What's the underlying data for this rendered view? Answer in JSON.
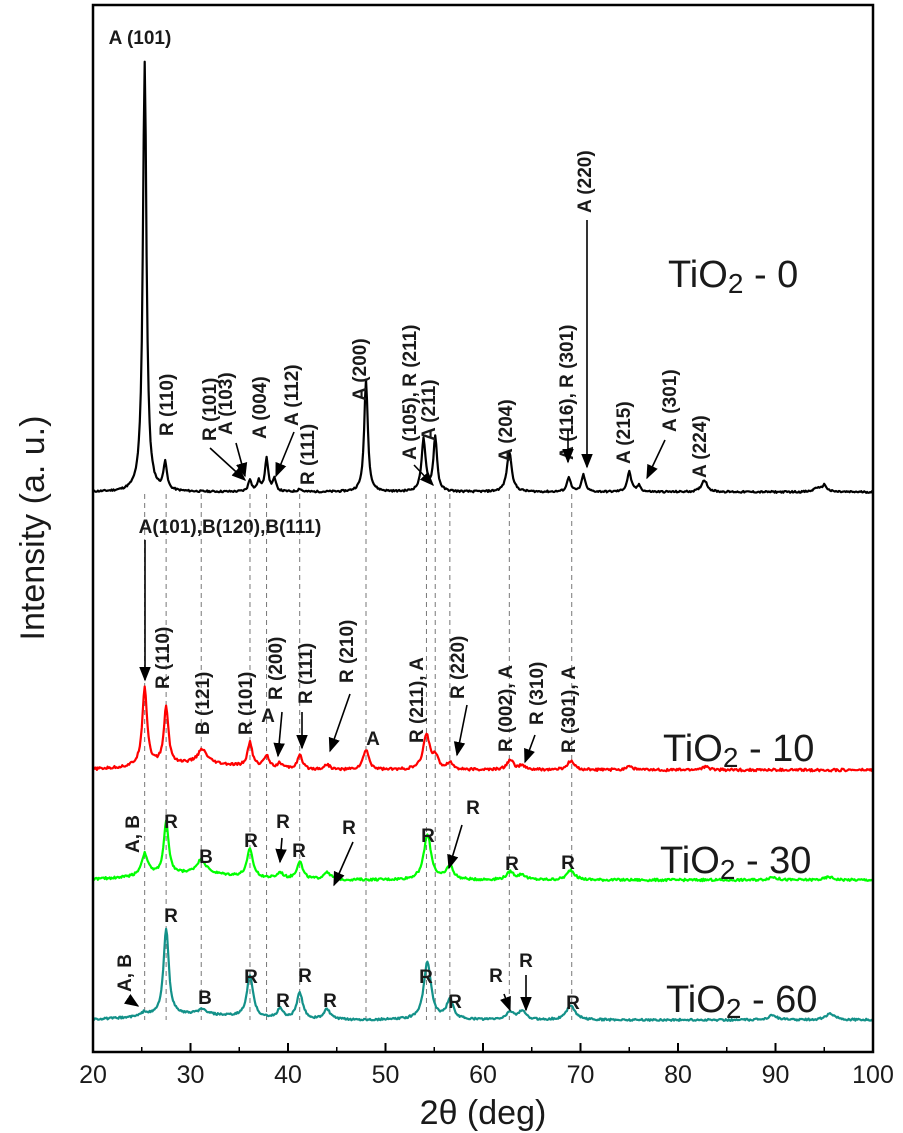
{
  "chart_data": {
    "type": "line",
    "xlabel": "2θ (deg)",
    "ylabel": "Intensity (a. u.)",
    "xlim": [
      20,
      100
    ],
    "x_ticks": [
      "20",
      "30",
      "40",
      "50",
      "60",
      "70",
      "80",
      "90",
      "100"
    ],
    "grid": false,
    "ref_lines_deg": [
      25.3,
      27.5,
      31.1,
      36.1,
      37.8,
      41.2,
      48.0,
      54.2,
      55.1,
      56.6,
      62.7,
      69.1
    ],
    "series": [
      {
        "name": "TiO2 - 0",
        "name_main": "TiO",
        "name_sub": "2",
        "name_rest": " - 0",
        "color": "#000000",
        "baseline": 0.0,
        "noise": 0.9,
        "hump": 0,
        "peaks": [
          {
            "x": 25.3,
            "h": 430,
            "w": 0.22
          },
          {
            "x": 27.4,
            "h": 28,
            "w": 0.2
          },
          {
            "x": 36.1,
            "h": 12,
            "w": 0.2
          },
          {
            "x": 37.0,
            "h": 10,
            "w": 0.2
          },
          {
            "x": 37.8,
            "h": 34,
            "w": 0.2
          },
          {
            "x": 38.6,
            "h": 12,
            "w": 0.2
          },
          {
            "x": 41.2,
            "h": 3,
            "w": 0.2
          },
          {
            "x": 48.0,
            "h": 112,
            "w": 0.22
          },
          {
            "x": 53.9,
            "h": 52,
            "w": 0.25
          },
          {
            "x": 55.1,
            "h": 55,
            "w": 0.22
          },
          {
            "x": 62.7,
            "h": 40,
            "w": 0.3
          },
          {
            "x": 68.8,
            "h": 15,
            "w": 0.22
          },
          {
            "x": 70.3,
            "h": 17,
            "w": 0.22
          },
          {
            "x": 75.0,
            "h": 20,
            "w": 0.25
          },
          {
            "x": 76.0,
            "h": 6,
            "w": 0.22
          },
          {
            "x": 82.7,
            "h": 12,
            "w": 0.35
          },
          {
            "x": 94.2,
            "h": 4,
            "w": 0.3
          },
          {
            "x": 95.0,
            "h": 7,
            "w": 0.3
          }
        ]
      },
      {
        "name": "TiO2 - 10",
        "name_main": "TiO",
        "name_sub": "2",
        "name_rest": " - 10",
        "color": "#ff0000",
        "baseline": 0.0,
        "noise": 1.3,
        "hump": 6,
        "peaks": [
          {
            "x": 25.3,
            "h": 78,
            "w": 0.3
          },
          {
            "x": 27.5,
            "h": 57,
            "w": 0.28
          },
          {
            "x": 31.2,
            "h": 14,
            "w": 0.6
          },
          {
            "x": 36.1,
            "h": 24,
            "w": 0.3
          },
          {
            "x": 37.8,
            "h": 12,
            "w": 0.35
          },
          {
            "x": 39.2,
            "h": 5,
            "w": 0.3
          },
          {
            "x": 41.2,
            "h": 14,
            "w": 0.3
          },
          {
            "x": 44.0,
            "h": 5,
            "w": 0.35
          },
          {
            "x": 48.0,
            "h": 20,
            "w": 0.35
          },
          {
            "x": 54.2,
            "h": 35,
            "w": 0.4
          },
          {
            "x": 55.1,
            "h": 12,
            "w": 0.35
          },
          {
            "x": 56.6,
            "h": 7,
            "w": 0.35
          },
          {
            "x": 62.8,
            "h": 10,
            "w": 0.4
          },
          {
            "x": 64.0,
            "h": 4,
            "w": 0.35
          },
          {
            "x": 69.0,
            "h": 9,
            "w": 0.4
          },
          {
            "x": 75.0,
            "h": 4,
            "w": 0.4
          },
          {
            "x": 82.8,
            "h": 3,
            "w": 0.5
          }
        ]
      },
      {
        "name": "TiO2 - 30",
        "name_main": "TiO",
        "name_sub": "2",
        "name_rest": " - 30",
        "color": "#00ff00",
        "baseline": 0.0,
        "noise": 1.2,
        "hump": 6,
        "peaks": [
          {
            "x": 25.3,
            "h": 22,
            "w": 0.4
          },
          {
            "x": 27.5,
            "h": 52,
            "w": 0.3
          },
          {
            "x": 31.1,
            "h": 14,
            "w": 0.6
          },
          {
            "x": 36.1,
            "h": 28,
            "w": 0.35
          },
          {
            "x": 39.2,
            "h": 6,
            "w": 0.35
          },
          {
            "x": 41.2,
            "h": 18,
            "w": 0.35
          },
          {
            "x": 44.0,
            "h": 8,
            "w": 0.4
          },
          {
            "x": 54.3,
            "h": 45,
            "w": 0.45
          },
          {
            "x": 56.6,
            "h": 14,
            "w": 0.4
          },
          {
            "x": 62.8,
            "h": 8,
            "w": 0.45
          },
          {
            "x": 64.0,
            "h": 5,
            "w": 0.4
          },
          {
            "x": 69.0,
            "h": 10,
            "w": 0.45
          },
          {
            "x": 89.7,
            "h": 3,
            "w": 0.5
          },
          {
            "x": 95.5,
            "h": 3,
            "w": 0.5
          }
        ]
      },
      {
        "name": "TiO2 - 60",
        "name_main": "TiO",
        "name_sub": "2",
        "name_rest": " - 60",
        "color": "#139189",
        "baseline": 0.0,
        "noise": 1.0,
        "hump": 5,
        "peaks": [
          {
            "x": 25.3,
            "h": 4,
            "w": 0.4
          },
          {
            "x": 27.5,
            "h": 87,
            "w": 0.32
          },
          {
            "x": 31.2,
            "h": 5,
            "w": 0.6
          },
          {
            "x": 36.1,
            "h": 42,
            "w": 0.38
          },
          {
            "x": 39.2,
            "h": 10,
            "w": 0.35
          },
          {
            "x": 41.2,
            "h": 26,
            "w": 0.38
          },
          {
            "x": 44.0,
            "h": 10,
            "w": 0.4
          },
          {
            "x": 54.3,
            "h": 58,
            "w": 0.45
          },
          {
            "x": 56.6,
            "h": 20,
            "w": 0.4
          },
          {
            "x": 62.8,
            "h": 8,
            "w": 0.45
          },
          {
            "x": 64.0,
            "h": 9,
            "w": 0.4
          },
          {
            "x": 69.0,
            "h": 15,
            "w": 0.5
          },
          {
            "x": 89.7,
            "h": 5,
            "w": 0.5
          },
          {
            "x": 95.6,
            "h": 6,
            "w": 0.6
          }
        ]
      }
    ],
    "annotations": [
      "A (101)",
      "R (110)",
      "R (101)",
      "A (103)",
      "A (004)",
      "A (112)",
      "R (111)",
      "A (200)",
      "A (105), R (211)",
      "A (211)",
      "A (204)",
      "A (116), R (301)",
      "A (220)",
      "A (215)",
      "A (301)",
      "A (224)",
      "A(101),B(120),B(111)",
      "R (110)",
      "B (121)",
      "R (101)",
      "R (200)",
      "A",
      "R (111)",
      "R (210)",
      "A",
      "R (211), A",
      "R (220)",
      "R (002), A",
      "R (310)",
      "R (301), A",
      "A, B",
      "R",
      "B",
      "R",
      "R",
      "R",
      "R",
      "R",
      "R",
      "R",
      "R",
      "A, B",
      "R",
      "B",
      "R",
      "R",
      "R",
      "R",
      "R",
      "R",
      "R",
      "R",
      "R"
    ]
  }
}
